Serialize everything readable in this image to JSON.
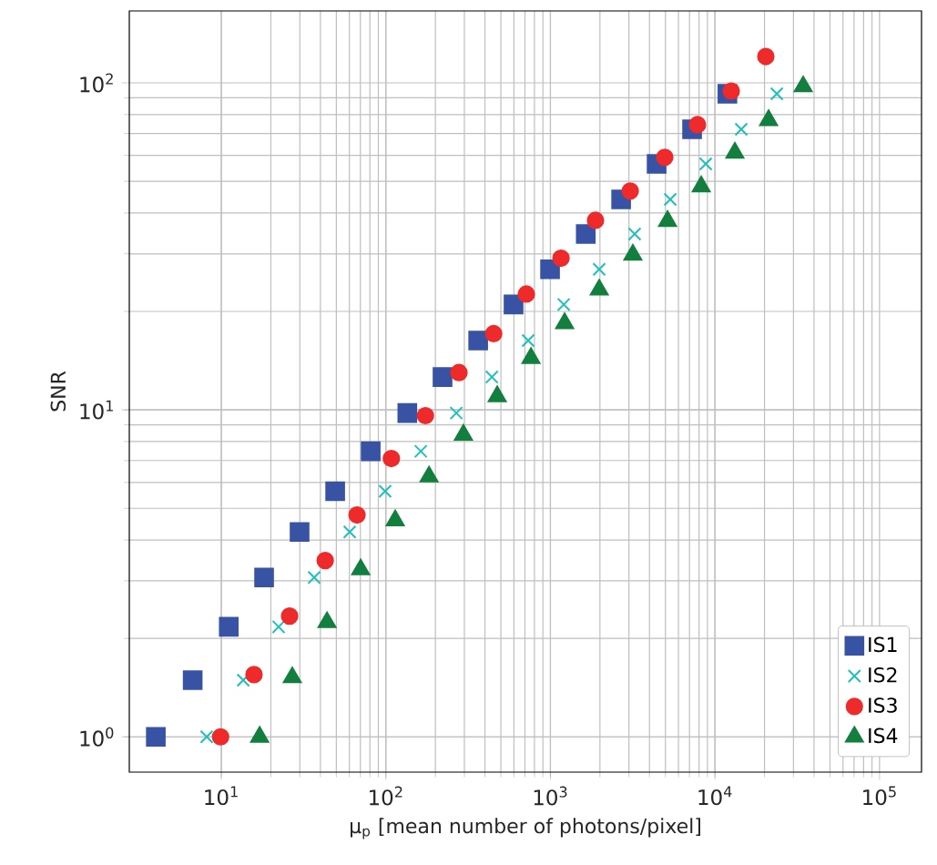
{
  "chart_data": {
    "type": "scatter",
    "xlabel": "μ$_{p}$ [mean number of photons/pixel]",
    "ylabel": "SNR",
    "log": "xy",
    "grid": true,
    "legend": "bottom right",
    "xlim": [
      2.76,
      180000
    ],
    "ylim": [
      0.78,
      166
    ],
    "xticks": [
      {
        "value": 10,
        "label": "10$^{1}$"
      },
      {
        "value": 100,
        "label": "10$^{2}$"
      },
      {
        "value": 1000,
        "label": "10$^{3}$"
      },
      {
        "value": 10000,
        "label": "10$^{4}$"
      },
      {
        "value": 100000,
        "label": "10$^{5}$"
      }
    ],
    "yticks": [
      {
        "value": 1,
        "label": "10$^{0}$"
      },
      {
        "value": 10,
        "label": "10$^{1}$"
      },
      {
        "value": 100,
        "label": "10$^{2}$"
      }
    ],
    "series": [
      {
        "name": "IS1",
        "color": "#3953a4",
        "marker": "square",
        "x": [
          4.0,
          6.7,
          11.1,
          18.2,
          29.9,
          49.2,
          80.9,
          135,
          221,
          364,
          597,
          995,
          1640,
          2690,
          4420,
          7260,
          11900
        ],
        "values": [
          1.0,
          1.49,
          2.17,
          3.07,
          4.23,
          5.64,
          7.47,
          9.78,
          12.6,
          16.3,
          21.0,
          26.9,
          34.5,
          44.0,
          56.5,
          72.1,
          92.6
        ]
      },
      {
        "name": "IS2",
        "color": "#1fbfbf",
        "marker": "cross",
        "x": [
          8.15,
          13.6,
          22.3,
          36.7,
          60.3,
          99,
          163,
          268,
          441,
          733,
          1205,
          1980,
          3250,
          5350,
          8790,
          14450,
          23770
        ],
        "values": [
          1.0,
          1.49,
          2.17,
          3.07,
          4.23,
          5.64,
          7.47,
          9.78,
          12.6,
          16.3,
          21.0,
          26.9,
          34.5,
          44.0,
          56.5,
          72.1,
          92.6
        ]
      },
      {
        "name": "IS3",
        "color": "#ee2a2a",
        "marker": "circle",
        "x": [
          9.9,
          15.8,
          26,
          42.8,
          66.8,
          108,
          174,
          278,
          452,
          714,
          1160,
          1880,
          3055,
          4954,
          7834,
          12560,
          20370
        ],
        "values": [
          1.0,
          1.55,
          2.34,
          3.46,
          4.77,
          7.1,
          9.6,
          13.0,
          17.1,
          22.6,
          29.1,
          38.0,
          46.7,
          59.2,
          74.5,
          94.4,
          120.4
        ]
      },
      {
        "name": "IS4",
        "color": "#137f3f",
        "marker": "triangle",
        "x": [
          17.1,
          27,
          43.9,
          70.3,
          114,
          183,
          296,
          475,
          762,
          1220,
          1980,
          3170,
          5150,
          8250,
          13210,
          21180,
          34360
        ],
        "values": [
          1.0,
          1.52,
          2.24,
          3.25,
          4.59,
          6.25,
          8.39,
          11.0,
          14.4,
          18.4,
          23.3,
          29.8,
          37.8,
          48.2,
          61.1,
          76.9,
          97.5
        ]
      }
    ]
  }
}
